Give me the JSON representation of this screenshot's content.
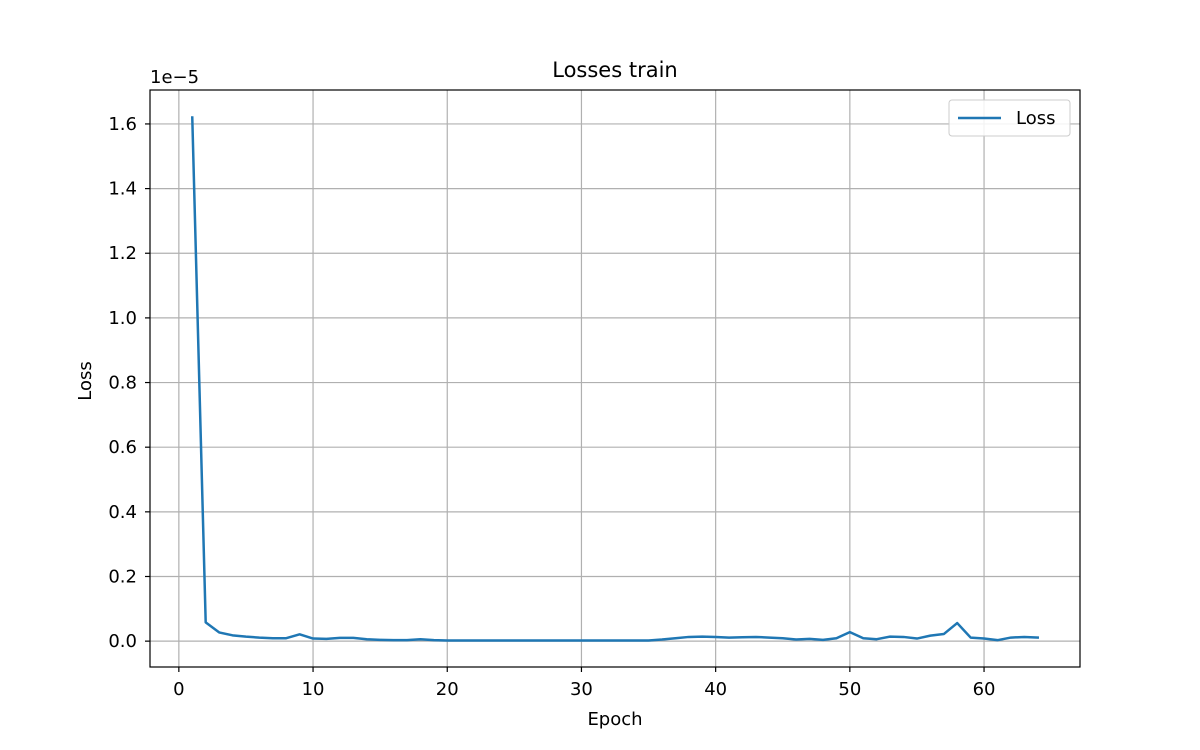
{
  "chart_data": {
    "type": "line",
    "title": "Losses train",
    "xlabel": "Epoch",
    "ylabel": "Loss",
    "y_offset_label": "1e−5",
    "xlim": [
      -2.15,
      67.15
    ],
    "ylim": [
      -0.08,
      1.705
    ],
    "xticks": [
      0,
      10,
      20,
      30,
      40,
      50,
      60
    ],
    "xtick_labels": [
      "0",
      "10",
      "20",
      "30",
      "40",
      "50",
      "60"
    ],
    "yticks": [
      0.0,
      0.2,
      0.4,
      0.6,
      0.8,
      1.0,
      1.2,
      1.4,
      1.6
    ],
    "ytick_labels": [
      "0.0",
      "0.2",
      "0.4",
      "0.6",
      "0.8",
      "1.0",
      "1.2",
      "1.4",
      "1.6"
    ],
    "grid": true,
    "legend_position": "top-right",
    "series": [
      {
        "name": "Loss",
        "color": "#1f77b4",
        "x": [
          1,
          2,
          3,
          4,
          5,
          6,
          7,
          8,
          9,
          10,
          11,
          12,
          13,
          14,
          15,
          16,
          17,
          18,
          19,
          20,
          21,
          22,
          23,
          24,
          25,
          26,
          27,
          28,
          29,
          30,
          31,
          32,
          33,
          34,
          35,
          36,
          37,
          38,
          39,
          40,
          41,
          42,
          43,
          44,
          45,
          46,
          47,
          48,
          49,
          50,
          51,
          52,
          53,
          54,
          55,
          56,
          57,
          58,
          59,
          60,
          61,
          62,
          63,
          64
        ],
        "y": [
          1.62,
          0.058,
          0.027,
          0.018,
          0.014,
          0.011,
          0.009,
          0.009,
          0.021,
          0.008,
          0.007,
          0.01,
          0.01,
          0.006,
          0.004,
          0.003,
          0.003,
          0.006,
          0.003,
          0.002,
          0.002,
          0.002,
          0.002,
          0.002,
          0.002,
          0.002,
          0.002,
          0.002,
          0.002,
          0.002,
          0.002,
          0.002,
          0.002,
          0.002,
          0.002,
          0.005,
          0.009,
          0.013,
          0.014,
          0.013,
          0.011,
          0.012,
          0.013,
          0.011,
          0.009,
          0.005,
          0.007,
          0.004,
          0.009,
          0.028,
          0.009,
          0.006,
          0.014,
          0.013,
          0.008,
          0.017,
          0.022,
          0.056,
          0.011,
          0.008,
          0.003,
          0.011,
          0.013,
          0.011
        ]
      }
    ]
  }
}
